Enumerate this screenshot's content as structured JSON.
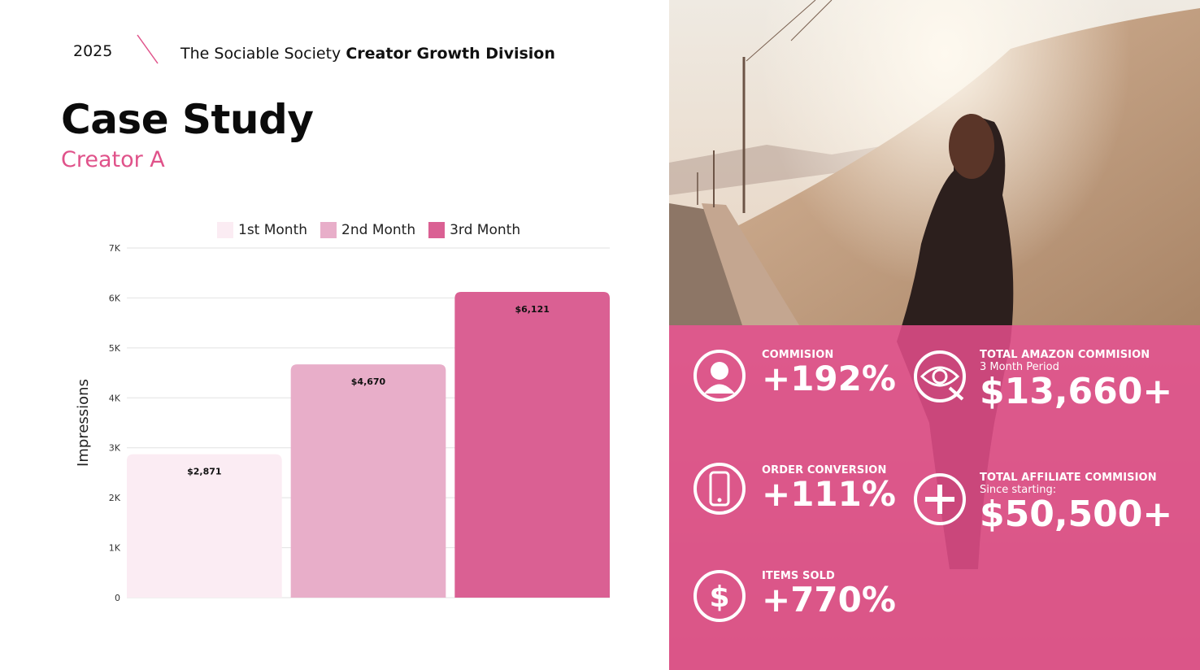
{
  "header": {
    "year": "2025",
    "brand_prefix": "The Sociable Society ",
    "brand_bold": "Creator Growth Division"
  },
  "title": "Case Study",
  "subtitle": "Creator A",
  "colors": {
    "accent": "#e0528a",
    "month1": "#fbecf3",
    "month2": "#e8aec9",
    "month3": "#da6093",
    "overlay": "#da4a84"
  },
  "legend": [
    "1st Month",
    "2nd Month",
    "3rd Month"
  ],
  "chart_data": {
    "type": "bar",
    "categories": [
      "1st Month",
      "2nd Month",
      "3rd Month"
    ],
    "values": [
      2871,
      4670,
      6121
    ],
    "data_labels": [
      "$2,871",
      "$4,670",
      "$6,121"
    ],
    "ylabel": "Impressions",
    "ylim": [
      0,
      7000
    ],
    "yticks": [
      0,
      1000,
      2000,
      3000,
      4000,
      5000,
      6000,
      7000
    ],
    "ytick_labels": [
      "0",
      "1K",
      "2K",
      "3K",
      "4K",
      "5K",
      "6K",
      "7K"
    ],
    "grid": true,
    "legend_position": "top"
  },
  "stats": {
    "commission": {
      "label": "COMMISION",
      "value": "+192%",
      "icon": "user-icon"
    },
    "order_conversion": {
      "label": "ORDER CONVERSION",
      "value": "+111%",
      "icon": "phone-icon"
    },
    "items_sold": {
      "label": "ITEMS SOLD",
      "value": "+770%",
      "icon": "dollar-icon"
    },
    "total_amazon": {
      "label": "TOTAL AMAZON COMMISION",
      "sub": "3 Month Period",
      "value": "$13,660+",
      "icon": "eye-icon"
    },
    "total_affiliate": {
      "label": "TOTAL AFFILIATE COMMISION",
      "sub": "Since starting:",
      "value": "$50,500+",
      "icon": "plus-icon"
    }
  }
}
